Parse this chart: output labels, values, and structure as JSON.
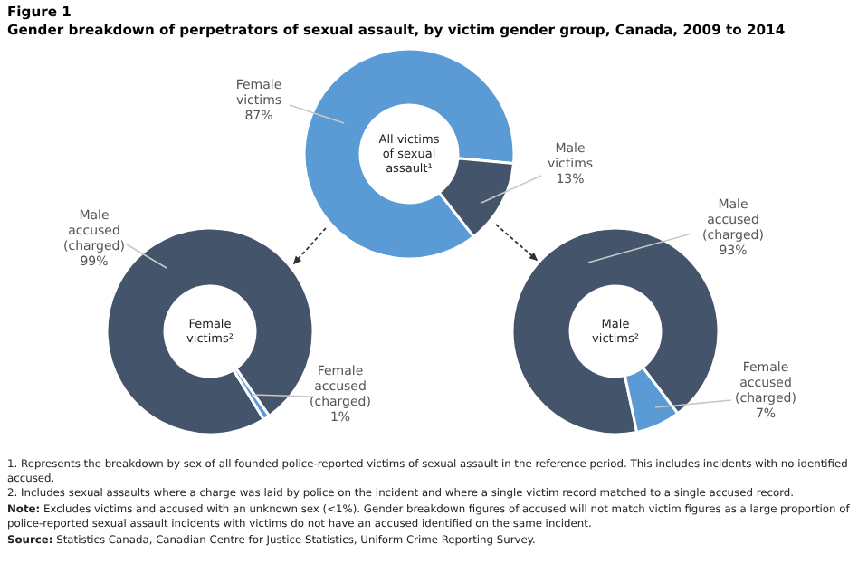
{
  "chart_data": [
    {
      "type": "donut",
      "title": "Figure 1",
      "subtitle": "Gender breakdown of perpetrators of sexual assault, by victim gender group, Canada, 2009 to 2014",
      "categories": [
        "Female victims",
        "Male victims"
      ],
      "values": [
        87,
        13
      ],
      "value_labels": [
        "87%",
        "13%"
      ],
      "colors": [
        "#5b9bd5",
        "#44546a"
      ],
      "annotations": [
        "All victims of sexual assault¹"
      ]
    },
    {
      "type": "donut",
      "categories": [
        "Male accused (charged)",
        "Female accused (charged)"
      ],
      "values": [
        99,
        1
      ],
      "value_labels": [
        "99%",
        "1%"
      ],
      "colors": [
        "#44546a",
        "#5b9bd5"
      ],
      "annotations": [
        "Female victims²"
      ]
    },
    {
      "type": "donut",
      "categories": [
        "Male accused (charged)",
        "Female accused (charged)"
      ],
      "values": [
        93,
        7
      ],
      "value_labels": [
        "93%",
        "7%"
      ],
      "colors": [
        "#44546a",
        "#5b9bd5"
      ],
      "annotations": [
        "Male victims²",
        "1. Represents the breakdown by sex of all founded police-reported victims of sexual assault in the reference period. This includes incidents with no identified accused.",
        "2. Includes sexual assaults where a charge was laid by police on the incident and where a single victim record matched to a single accused record.",
        "Note: Excludes victims and accused with an unknown sex (<1%). Gender breakdown figures of accused will not match victim figures as a large proportion of police-reported sexual assault incidents with victims do not have an accused identified on the same incident.",
        "Source: Statistics Canada, Canadian Centre for Justice Statistics, Uniform Crime Reporting Survey."
      ]
    }
  ]
}
